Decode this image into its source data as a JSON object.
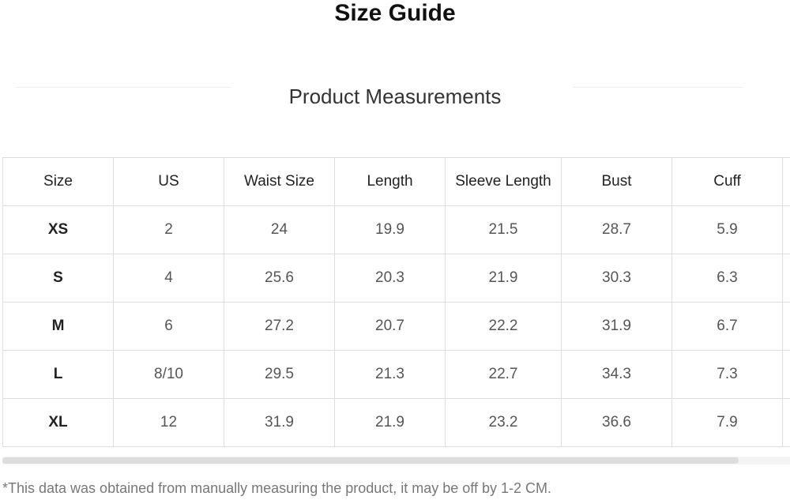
{
  "title": "Size Guide",
  "subtitle": "Product Measurements",
  "table": {
    "headers": [
      "Size",
      "US",
      "Waist Size",
      "Length",
      "Sleeve Length",
      "Bust",
      "Cuff",
      ""
    ],
    "rows": [
      [
        "XS",
        "2",
        "24",
        "19.9",
        "21.5",
        "28.7",
        "5.9",
        ""
      ],
      [
        "S",
        "4",
        "25.6",
        "20.3",
        "21.9",
        "30.3",
        "6.3",
        ""
      ],
      [
        "M",
        "6",
        "27.2",
        "20.7",
        "22.2",
        "31.9",
        "6.7",
        ""
      ],
      [
        "L",
        "8/10",
        "29.5",
        "21.3",
        "22.7",
        "34.3",
        "7.3",
        ""
      ],
      [
        "XL",
        "12",
        "31.9",
        "21.9",
        "23.2",
        "36.6",
        "7.9",
        ""
      ]
    ]
  },
  "note": "*This data was obtained from manually measuring the product, it may be off by 1-2 CM."
}
